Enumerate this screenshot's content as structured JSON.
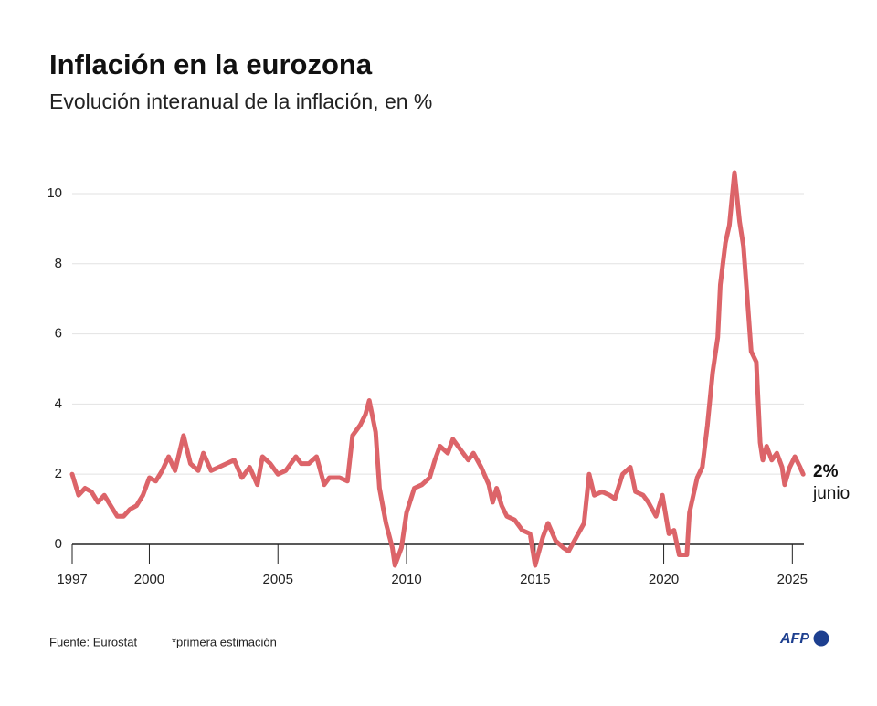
{
  "chart_data": {
    "type": "line",
    "title": "Inflación en la eurozona",
    "subtitle": "Evolución interanual de la inflación, en %",
    "annotations": [
      "2%",
      "junio"
    ],
    "source": "Fuente: Eurostat",
    "note": "*primera estimación",
    "logo": "AFP",
    "color": "#dc6469",
    "grid": true,
    "xlim": [
      1997,
      2025.45
    ],
    "xticks": [
      1997,
      2000,
      2005,
      2010,
      2015,
      2020,
      2025
    ],
    "ylim": [
      -0.6,
      11
    ],
    "yticks": [
      0,
      2,
      4,
      6,
      8,
      10
    ],
    "x": [
      1997.0,
      1997.25,
      1997.5,
      1997.75,
      1998.0,
      1998.25,
      1998.5,
      1998.75,
      1999.0,
      1999.25,
      1999.5,
      1999.75,
      2000.0,
      2000.25,
      2000.5,
      2000.75,
      2001.0,
      2001.33,
      2001.6,
      2001.9,
      2002.1,
      2002.4,
      2002.7,
      2003.0,
      2003.3,
      2003.6,
      2003.9,
      2004.2,
      2004.4,
      2004.7,
      2005.0,
      2005.3,
      2005.7,
      2005.9,
      2006.2,
      2006.5,
      2006.8,
      2007.0,
      2007.4,
      2007.7,
      2007.9,
      2008.2,
      2008.4,
      2008.55,
      2008.8,
      2008.95,
      2009.2,
      2009.45,
      2009.55,
      2009.8,
      2010.0,
      2010.3,
      2010.6,
      2010.9,
      2011.1,
      2011.3,
      2011.6,
      2011.8,
      2012.1,
      2012.4,
      2012.6,
      2012.9,
      2013.2,
      2013.35,
      2013.5,
      2013.7,
      2013.9,
      2014.2,
      2014.5,
      2014.8,
      2015.0,
      2015.3,
      2015.5,
      2015.8,
      2016.1,
      2016.3,
      2016.6,
      2016.9,
      2017.1,
      2017.3,
      2017.6,
      2017.9,
      2018.1,
      2018.4,
      2018.7,
      2018.9,
      2019.2,
      2019.4,
      2019.7,
      2019.95,
      2020.2,
      2020.4,
      2020.6,
      2020.9,
      2021.0,
      2021.3,
      2021.5,
      2021.7,
      2021.9,
      2022.1,
      2022.2,
      2022.4,
      2022.55,
      2022.75,
      2022.95,
      2023.1,
      2023.25,
      2023.4,
      2023.6,
      2023.75,
      2023.85,
      2024.0,
      2024.2,
      2024.4,
      2024.6,
      2024.7,
      2024.9,
      2025.1,
      2025.3,
      2025.42
    ],
    "values": [
      2.0,
      1.4,
      1.6,
      1.5,
      1.2,
      1.4,
      1.1,
      0.8,
      0.8,
      1.0,
      1.1,
      1.4,
      1.9,
      1.8,
      2.1,
      2.5,
      2.1,
      3.1,
      2.3,
      2.1,
      2.6,
      2.1,
      2.2,
      2.3,
      2.4,
      1.9,
      2.2,
      1.7,
      2.5,
      2.3,
      2.0,
      2.1,
      2.5,
      2.3,
      2.3,
      2.5,
      1.7,
      1.9,
      1.9,
      1.8,
      3.1,
      3.4,
      3.7,
      4.1,
      3.2,
      1.6,
      0.6,
      -0.1,
      -0.6,
      -0.1,
      0.9,
      1.6,
      1.7,
      1.9,
      2.4,
      2.8,
      2.6,
      3.0,
      2.7,
      2.4,
      2.6,
      2.2,
      1.7,
      1.2,
      1.6,
      1.1,
      0.8,
      0.7,
      0.4,
      0.3,
      -0.6,
      0.2,
      0.6,
      0.1,
      -0.1,
      -0.2,
      0.2,
      0.6,
      2.0,
      1.4,
      1.5,
      1.4,
      1.3,
      2.0,
      2.2,
      1.5,
      1.4,
      1.2,
      0.8,
      1.4,
      0.3,
      0.4,
      -0.3,
      -0.3,
      0.9,
      1.9,
      2.2,
      3.4,
      4.9,
      5.9,
      7.4,
      8.6,
      9.1,
      10.6,
      9.2,
      8.5,
      7.0,
      5.5,
      5.2,
      2.9,
      2.4,
      2.8,
      2.4,
      2.6,
      2.2,
      1.7,
      2.2,
      2.5,
      2.2,
      2.0
    ]
  }
}
